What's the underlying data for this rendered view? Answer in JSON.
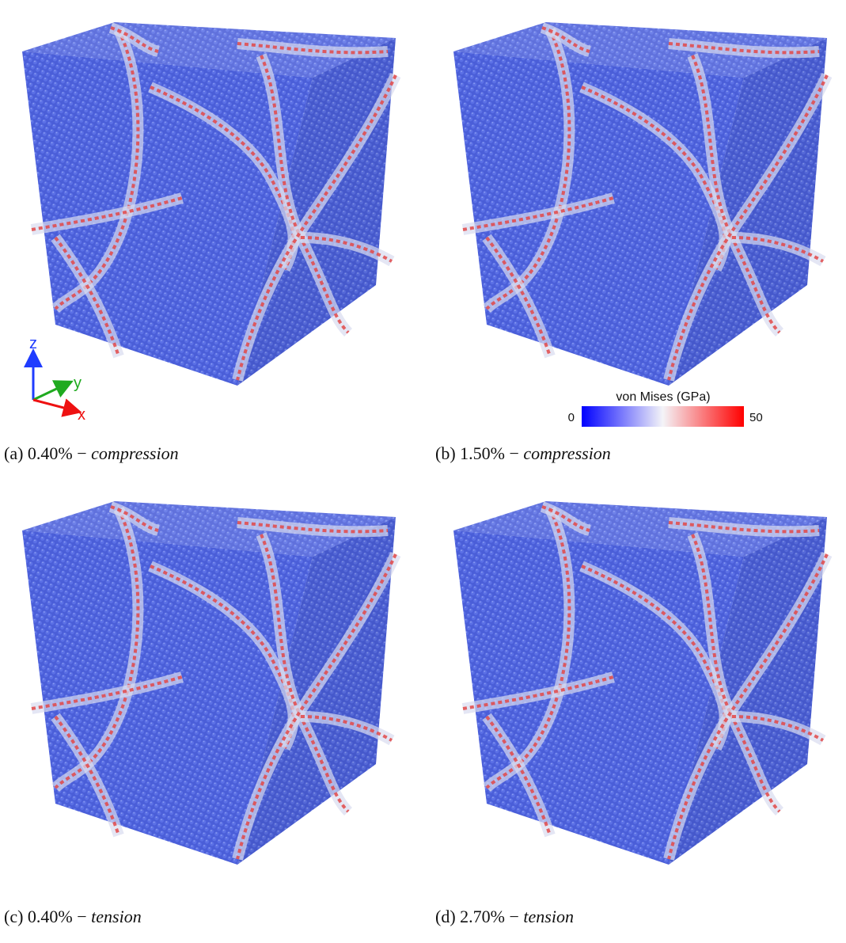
{
  "panels": [
    {
      "label": "(a)",
      "strain": "0.40%",
      "separator": "−",
      "mode": "compression"
    },
    {
      "label": "(b)",
      "strain": "1.50%",
      "separator": "−",
      "mode": "compression"
    },
    {
      "label": "(c)",
      "strain": "0.40%",
      "separator": "−",
      "mode": "tension"
    },
    {
      "label": "(d)",
      "strain": "2.70%",
      "separator": "−",
      "mode": "tension"
    }
  ],
  "axes": {
    "z": "z",
    "y": "y",
    "x": "x"
  },
  "colorbar": {
    "title": "von Mises (GPa)",
    "min": "0",
    "max": "50"
  }
}
